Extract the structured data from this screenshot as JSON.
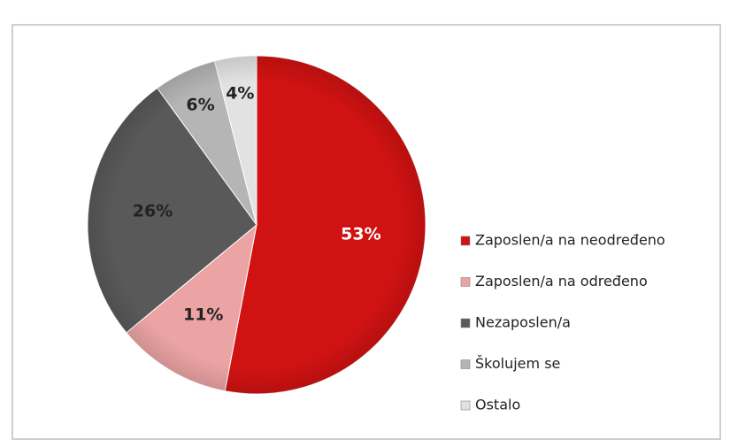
{
  "chart_data": {
    "type": "pie",
    "categories": [
      "Zaposlen/a na neodređeno",
      "Zaposlen/a na određeno",
      "Nezaposlen/a",
      "Školujem se",
      "Ostalo"
    ],
    "values": [
      53,
      11,
      26,
      6,
      4
    ],
    "value_labels": [
      "53%",
      "11%",
      "26%",
      "6%",
      "4%"
    ],
    "colors": [
      "#d01212",
      "#eba3a3",
      "#595959",
      "#b5b5b5",
      "#e2e2e2"
    ],
    "legend": "right"
  }
}
